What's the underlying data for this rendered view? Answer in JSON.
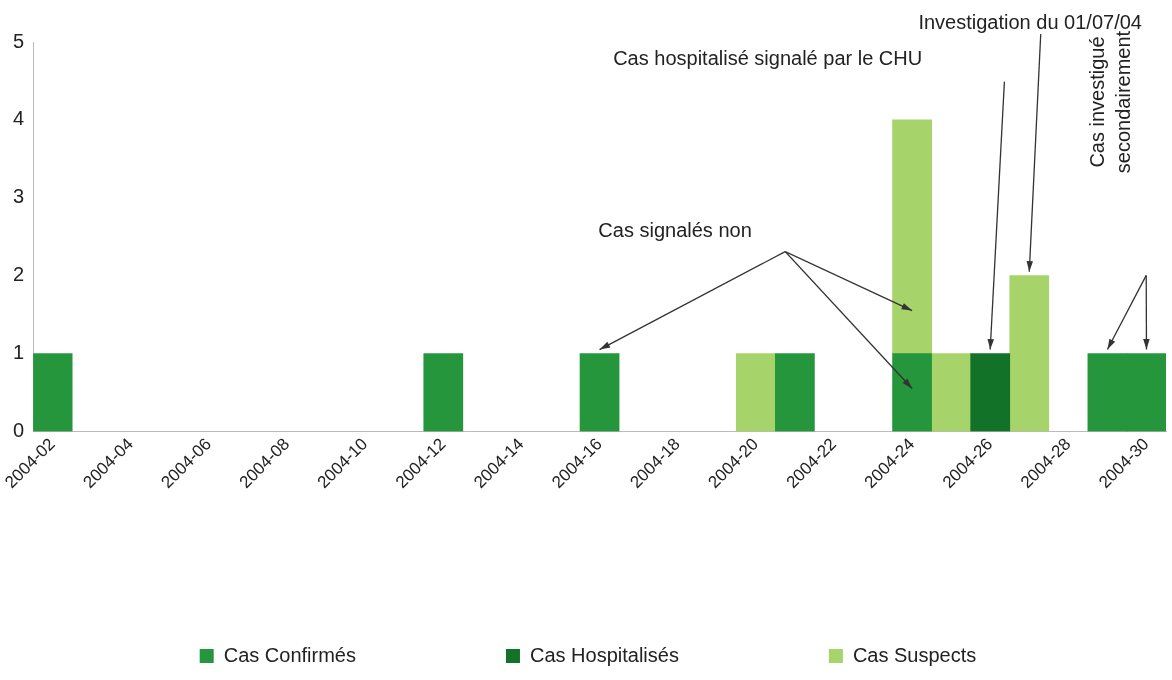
{
  "chart_data": {
    "type": "bar",
    "stacked": true,
    "categories": [
      "2004-02",
      null,
      "2004-04",
      null,
      "2004-06",
      null,
      "2004-08",
      null,
      "2004-10",
      null,
      "2004-12",
      null,
      "2004-14",
      null,
      "2004-16",
      null,
      "2004-18",
      null,
      "2004-20",
      null,
      "2004-22",
      null,
      "2004-24",
      null,
      "2004-26",
      null,
      "2004-28",
      null,
      "2004-30"
    ],
    "series": [
      {
        "name": "Cas Confirmés",
        "color": "#25963c",
        "values": [
          1,
          null,
          null,
          null,
          null,
          null,
          null,
          null,
          null,
          null,
          1,
          null,
          null,
          null,
          1,
          null,
          null,
          null,
          null,
          1,
          null,
          null,
          1,
          null,
          null,
          null,
          null,
          1,
          1
        ]
      },
      {
        "name": "Cas Hospitalisés",
        "color": "#127228",
        "values": [
          null,
          null,
          null,
          null,
          null,
          null,
          null,
          null,
          null,
          null,
          null,
          null,
          null,
          null,
          null,
          null,
          null,
          null,
          null,
          null,
          null,
          null,
          null,
          null,
          1,
          null,
          null,
          null,
          null
        ]
      },
      {
        "name": "Cas Suspects",
        "color": "#a6d36a",
        "values": [
          null,
          null,
          null,
          null,
          null,
          null,
          null,
          null,
          null,
          null,
          null,
          null,
          null,
          null,
          null,
          null,
          null,
          null,
          1,
          null,
          null,
          null,
          3,
          1,
          null,
          2,
          null,
          null,
          null
        ]
      }
    ],
    "ylim": [
      0,
      5
    ],
    "yticks": [
      0,
      1,
      2,
      3,
      4,
      5
    ],
    "grid": false,
    "legend": "bottom",
    "annotations": [
      "Cas signalés non",
      "Cas hospitalisé signalé par le CHU",
      {
        "text": "Investigation du 01/07/04",
        "y": 2
      },
      "Cas investigué secondairement"
    ]
  }
}
